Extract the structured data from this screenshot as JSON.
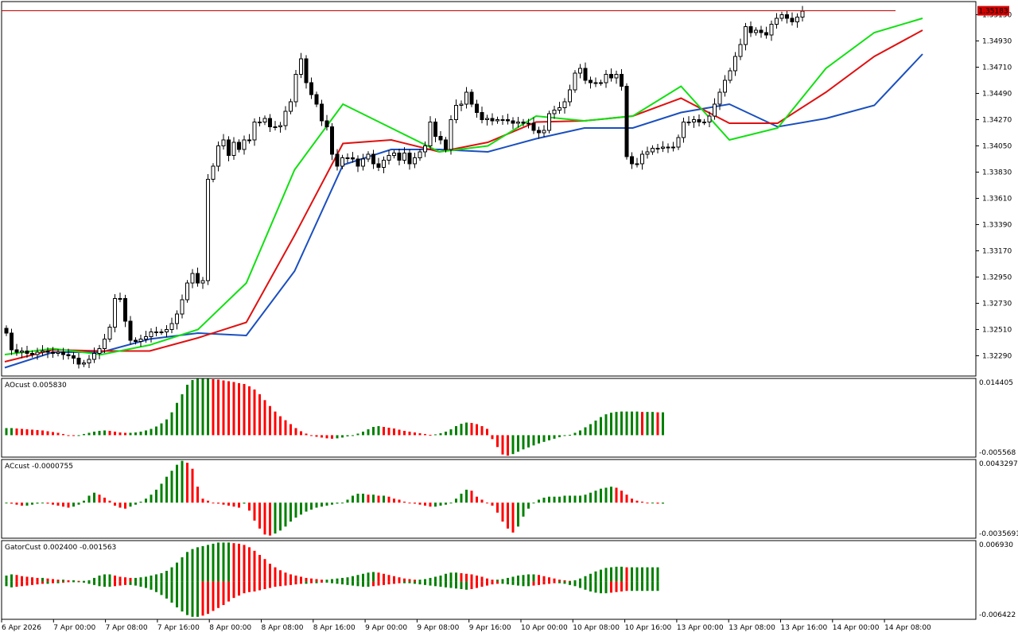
{
  "chart_data": [
    {
      "type": "candlestick",
      "current_price_label": "1.35183",
      "ylim": [
        1.3212,
        1.3526
      ],
      "y_ticks": [
        "1.35150",
        "1.34930",
        "1.34710",
        "1.34490",
        "1.34270",
        "1.34050",
        "1.33830",
        "1.33610",
        "1.33390",
        "1.33170",
        "1.32950",
        "1.32730",
        "1.32510",
        "1.32290"
      ],
      "x_ticks": [
        "6 Apr 2026",
        "7 Apr 00:00",
        "7 Apr 08:00",
        "7 Apr 16:00",
        "8 Apr 00:00",
        "8 Apr 08:00",
        "8 Apr 16:00",
        "9 Apr 00:00",
        "9 Apr 08:00",
        "9 Apr 16:00",
        "10 Apr 00:00",
        "10 Apr 08:00",
        "10 Apr 16:00",
        "13 Apr 00:00",
        "13 Apr 08:00",
        "13 Apr 16:00",
        "14 Apr 00:00",
        "14 Apr 08:00"
      ],
      "closes": [
        1.3248,
        1.3234,
        1.3232,
        1.3233,
        1.3231,
        1.323,
        1.3232,
        1.3233,
        1.3232,
        1.3231,
        1.3232,
        1.323,
        1.3229,
        1.3227,
        1.3222,
        1.3223,
        1.3226,
        1.3231,
        1.3235,
        1.3243,
        1.3253,
        1.3277,
        1.3277,
        1.3258,
        1.3242,
        1.3241,
        1.3243,
        1.3245,
        1.3249,
        1.3249,
        1.3249,
        1.3251,
        1.3256,
        1.3264,
        1.3276,
        1.329,
        1.3298,
        1.329,
        1.3292,
        1.3377,
        1.3388,
        1.3405,
        1.341,
        1.3397,
        1.3408,
        1.3402,
        1.341,
        1.341,
        1.3425,
        1.3425,
        1.3428,
        1.3421,
        1.3421,
        1.3422,
        1.3434,
        1.3442,
        1.3465,
        1.3478,
        1.3458,
        1.3448,
        1.344,
        1.3426,
        1.3421,
        1.3398,
        1.3388,
        1.3395,
        1.3395,
        1.3394,
        1.3388,
        1.3394,
        1.3398,
        1.339,
        1.3387,
        1.3393,
        1.3397,
        1.3399,
        1.3393,
        1.3399,
        1.339,
        1.3395,
        1.34,
        1.3405,
        1.3425,
        1.3413,
        1.341,
        1.3402,
        1.3427,
        1.3439,
        1.344,
        1.345,
        1.344,
        1.3433,
        1.3427,
        1.3428,
        1.3426,
        1.3427,
        1.3427,
        1.3426,
        1.3424,
        1.3425,
        1.3424,
        1.3424,
        1.3418,
        1.3416,
        1.3418,
        1.3432,
        1.3435,
        1.3437,
        1.3442,
        1.3452,
        1.3466,
        1.347,
        1.346,
        1.3458,
        1.3458,
        1.3458,
        1.3465,
        1.3462,
        1.3465,
        1.3455,
        1.3396,
        1.339,
        1.339,
        1.3398,
        1.34,
        1.3403,
        1.3403,
        1.3404,
        1.3404,
        1.3404,
        1.3412,
        1.3425,
        1.3425,
        1.3427,
        1.3425,
        1.3425,
        1.343,
        1.344,
        1.345,
        1.346,
        1.3468,
        1.348,
        1.349,
        1.3505,
        1.35,
        1.3502,
        1.35,
        1.3498,
        1.3507,
        1.3512,
        1.3515,
        1.3512,
        1.3509,
        1.3513,
        1.3518
      ],
      "alligator": [
        {
          "name": "jaw",
          "color": "#1a4fbf",
          "values": [
            1.3219,
            1.3232,
            1.3232,
            1.3243,
            1.3248,
            1.3246,
            1.33,
            1.3389,
            1.3402,
            1.3402,
            1.34,
            1.3411,
            1.342,
            1.342,
            1.3433,
            1.344,
            1.3421,
            1.3428,
            1.3439,
            1.3482
          ]
        },
        {
          "name": "teeth",
          "color": "#e01010",
          "values": [
            1.3224,
            1.3234,
            1.3233,
            1.3233,
            1.3244,
            1.3257,
            1.333,
            1.3407,
            1.341,
            1.34,
            1.3408,
            1.3425,
            1.3426,
            1.343,
            1.3445,
            1.3424,
            1.3424,
            1.345,
            1.348,
            1.3502
          ]
        },
        {
          "name": "lips",
          "color": "#10e010",
          "values": [
            1.323,
            1.3235,
            1.323,
            1.3238,
            1.3251,
            1.329,
            1.3385,
            1.344,
            1.342,
            1.34,
            1.3405,
            1.343,
            1.3426,
            1.343,
            1.3455,
            1.341,
            1.342,
            1.347,
            1.35,
            1.3512
          ]
        }
      ]
    },
    {
      "type": "bar",
      "title": "AOcust 0.005830",
      "ylim_labels": [
        "0.014405",
        "-0.005568"
      ],
      "ylim": [
        -0.005568,
        0.014405
      ],
      "values": [
        0.0018,
        0.0018,
        0.0017,
        0.0016,
        0.0015,
        0.0014,
        0.0013,
        0.0012,
        0.001,
        0.0008,
        0.0006,
        0.0003,
        0.0,
        -0.0002,
        0.0,
        0.0003,
        0.0006,
        0.0009,
        0.0011,
        0.0012,
        0.0011,
        0.0009,
        0.0007,
        0.0006,
        0.0006,
        0.0007,
        0.0009,
        0.0012,
        0.0016,
        0.0022,
        0.003,
        0.004,
        0.0058,
        0.0082,
        0.0104,
        0.0128,
        0.014,
        0.0143,
        0.0143,
        0.0143,
        0.0142,
        0.0141,
        0.0139,
        0.0137,
        0.0135,
        0.0132,
        0.013,
        0.0124,
        0.0116,
        0.0104,
        0.0089,
        0.0074,
        0.006,
        0.0048,
        0.0038,
        0.0028,
        0.0018,
        0.001,
        0.0004,
        -0.0001,
        -0.0004,
        -0.0006,
        -0.0008,
        -0.0009,
        -0.0008,
        -0.0006,
        -0.0003,
        0.0,
        0.0004,
        0.0009,
        0.0015,
        0.0021,
        0.0023,
        0.0021,
        0.0019,
        0.0017,
        0.0014,
        0.0011,
        0.0009,
        0.0007,
        0.0005,
        0.0003,
        0.0001,
        0.0002,
        0.0005,
        0.0009,
        0.0015,
        0.0023,
        0.0029,
        0.0032,
        0.0031,
        0.0028,
        0.0023,
        0.0016,
        -0.001,
        -0.003,
        -0.0049,
        -0.0052,
        -0.0048,
        -0.0042,
        -0.0036,
        -0.0031,
        -0.0026,
        -0.0021,
        -0.0017,
        -0.0013,
        -0.0009,
        -0.0005,
        -0.0002,
        0.0001,
        0.0006,
        0.0012,
        0.002,
        0.0028,
        0.0037,
        0.0046,
        0.0053,
        0.0057,
        0.0059,
        0.006,
        0.006,
        0.006,
        0.006,
        0.0059,
        0.0059,
        0.0059,
        0.0058,
        0.0058
      ]
    },
    {
      "type": "bar",
      "title": "ACcust -0.0000755",
      "ylim_labels": [
        "0.0043297",
        "-0.0035691"
      ],
      "ylim": [
        -0.0035691,
        0.0043297
      ],
      "values": [
        0.0,
        -0.0001,
        -0.0002,
        -0.0003,
        -0.0003,
        -0.0002,
        -0.0001,
        0.0,
        -0.0001,
        -0.0002,
        -0.0003,
        -0.0004,
        -0.0005,
        -0.0004,
        -0.0002,
        0.0002,
        0.0007,
        0.001,
        0.0008,
        0.0005,
        0.0002,
        -0.0003,
        -0.0005,
        -0.0006,
        -0.0004,
        -0.0002,
        0.0001,
        0.0004,
        0.0008,
        0.0013,
        0.0019,
        0.0026,
        0.0032,
        0.0038,
        0.0042,
        0.004,
        0.0034,
        0.0016,
        0.0004,
        0.0002,
        0.0,
        -0.0001,
        -0.0002,
        -0.0003,
        -0.0004,
        -0.0005,
        -0.0001,
        -0.0008,
        -0.0018,
        -0.0026,
        -0.0032,
        -0.0033,
        -0.0031,
        -0.0028,
        -0.0024,
        -0.0019,
        -0.0015,
        -0.0012,
        -0.0009,
        -0.0007,
        -0.0005,
        -0.0004,
        -0.0003,
        -0.0002,
        -0.0001,
        0.0,
        0.0003,
        0.0007,
        0.0009,
        0.0009,
        0.0008,
        0.0008,
        0.0007,
        0.0007,
        0.0006,
        0.0004,
        0.0003,
        0.0001,
        0.0,
        -0.0001,
        -0.0002,
        -0.0003,
        -0.0004,
        -0.0004,
        -0.0003,
        -0.0002,
        0.0,
        0.0004,
        0.0009,
        0.0013,
        0.0012,
        0.0006,
        0.0003,
        0.0,
        -0.0003,
        -0.001,
        -0.0019,
        -0.0026,
        -0.003,
        -0.0024,
        -0.0014,
        -0.0006,
        0.0,
        0.0003,
        0.0005,
        0.0006,
        0.0006,
        0.0006,
        0.0007,
        0.0007,
        0.0007,
        0.0007,
        0.0008,
        0.001,
        0.0012,
        0.0014,
        0.0015,
        0.0016,
        0.0015,
        0.0012,
        0.0008,
        0.0004,
        0.0002,
        0.0001,
        0.0,
        0.0,
        -0.0001,
        -0.0001
      ]
    },
    {
      "type": "bar",
      "title": "GatorCust 0.002400 -0.001563",
      "ylim_labels": [
        "0.006930",
        "-0.006422"
      ],
      "ylim": [
        -0.006422,
        0.00693
      ],
      "upper": [
        0.001,
        0.0012,
        0.0011,
        0.0009,
        0.0008,
        0.0007,
        0.0006,
        0.0006,
        0.0005,
        0.0004,
        0.0003,
        0.0003,
        0.0002,
        0.0002,
        0.0001,
        0.0001,
        0.0002,
        0.0006,
        0.001,
        0.0012,
        0.0012,
        0.001,
        0.0008,
        0.0007,
        0.0006,
        0.0006,
        0.0007,
        0.0008,
        0.001,
        0.0012,
        0.0014,
        0.0018,
        0.0024,
        0.0032,
        0.0041,
        0.005,
        0.0055,
        0.0058,
        0.006,
        0.0062,
        0.0064,
        0.0066,
        0.0066,
        0.0066,
        0.0065,
        0.0064,
        0.0062,
        0.0058,
        0.0052,
        0.0045,
        0.0038,
        0.003,
        0.0024,
        0.0019,
        0.0015,
        0.0012,
        0.001,
        0.0008,
        0.0006,
        0.0005,
        0.0004,
        0.0003,
        0.0003,
        0.0004,
        0.0005,
        0.0006,
        0.0007,
        0.0009,
        0.0011,
        0.0013,
        0.0015,
        0.0016,
        0.0015,
        0.0013,
        0.0011,
        0.0009,
        0.0007,
        0.0005,
        0.0004,
        0.0003,
        0.0003,
        0.0004,
        0.0006,
        0.0008,
        0.001,
        0.0013,
        0.0015,
        0.0015,
        0.0014,
        0.0013,
        0.0012,
        0.001,
        0.0008,
        0.0005,
        0.0003,
        0.0003,
        0.0004,
        0.0006,
        0.0008,
        0.001,
        0.0011,
        0.0012,
        0.0012,
        0.0011,
        0.0009,
        0.0007,
        0.0005,
        0.0003,
        0.0002,
        0.0001,
        0.0002,
        0.0005,
        0.0009,
        0.0013,
        0.0017,
        0.002,
        0.0023,
        0.0024,
        0.0025,
        0.0025,
        0.0024,
        0.0024,
        0.0024,
        0.0024,
        0.0024,
        0.0024,
        0.0024
      ],
      "lower": [
        -0.0008,
        -0.001,
        -0.0009,
        -0.0008,
        -0.0007,
        -0.0006,
        -0.0005,
        -0.0004,
        -0.0004,
        -0.0003,
        -0.0003,
        -0.0002,
        -0.0001,
        -0.0001,
        -0.0001,
        -0.0002,
        -0.0004,
        -0.0006,
        -0.0008,
        -0.0009,
        -0.0009,
        -0.0008,
        -0.0007,
        -0.0006,
        -0.0006,
        -0.0007,
        -0.0009,
        -0.0011,
        -0.0014,
        -0.0018,
        -0.0023,
        -0.0029,
        -0.0036,
        -0.0044,
        -0.0051,
        -0.0057,
        -0.006,
        -0.006,
        -0.0058,
        -0.0055,
        -0.005,
        -0.0045,
        -0.004,
        -0.0034,
        -0.0028,
        -0.0024,
        -0.002,
        -0.0018,
        -0.0017,
        -0.0015,
        -0.0013,
        -0.0011,
        -0.0009,
        -0.0008,
        -0.0007,
        -0.0006,
        -0.0005,
        -0.0004,
        -0.0004,
        -0.0003,
        -0.0003,
        -0.0002,
        -0.0002,
        -0.0003,
        -0.0004,
        -0.0005,
        -0.0006,
        -0.0007,
        -0.0008,
        -0.0009,
        -0.0009,
        -0.0008,
        -0.0007,
        -0.0006,
        -0.0005,
        -0.0004,
        -0.0003,
        -0.0003,
        -0.0003,
        -0.0004,
        -0.0005,
        -0.0006,
        -0.0007,
        -0.0008,
        -0.0009,
        -0.001,
        -0.0011,
        -0.0012,
        -0.0013,
        -0.0014,
        -0.0013,
        -0.0011,
        -0.0009,
        -0.0007,
        -0.0005,
        -0.0004,
        -0.0004,
        -0.0005,
        -0.0006,
        -0.0007,
        -0.0008,
        -0.0008,
        -0.0007,
        -0.0006,
        -0.0005,
        -0.0004,
        -0.0003,
        -0.0003,
        -0.0004,
        -0.0006,
        -0.0008,
        -0.0011,
        -0.0014,
        -0.0017,
        -0.0019,
        -0.002,
        -0.002,
        -0.0019,
        -0.0018,
        -0.0017,
        -0.0016,
        -0.0016,
        -0.0016,
        -0.0016,
        -0.0016,
        -0.0016,
        -0.0016
      ]
    }
  ],
  "colors": {
    "up": "#008000",
    "down": "#ff0000",
    "candle_up_fill": "#ffffff",
    "candle_down_fill": "#000000",
    "price_line": "#c00000",
    "price_tag_bg": "#d10000",
    "fractal": "#b0b0b0"
  }
}
